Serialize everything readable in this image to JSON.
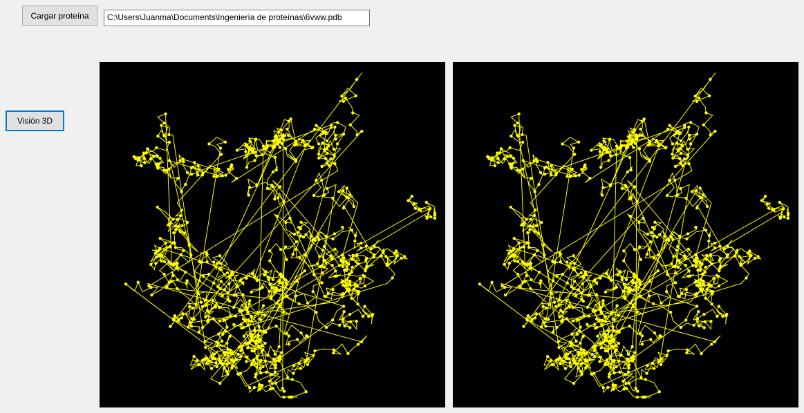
{
  "toolbar": {
    "load_button_label": "Cargar proteína",
    "file_path": "C:\\Users\\Juanma\\Documents\\Ingeniería de proteínas\\6vww.pdb"
  },
  "sidebar": {
    "vision3d_button_label": "Visión 3D"
  },
  "viewers": {
    "structure_color": "#ffff00",
    "background_color": "#000000"
  }
}
